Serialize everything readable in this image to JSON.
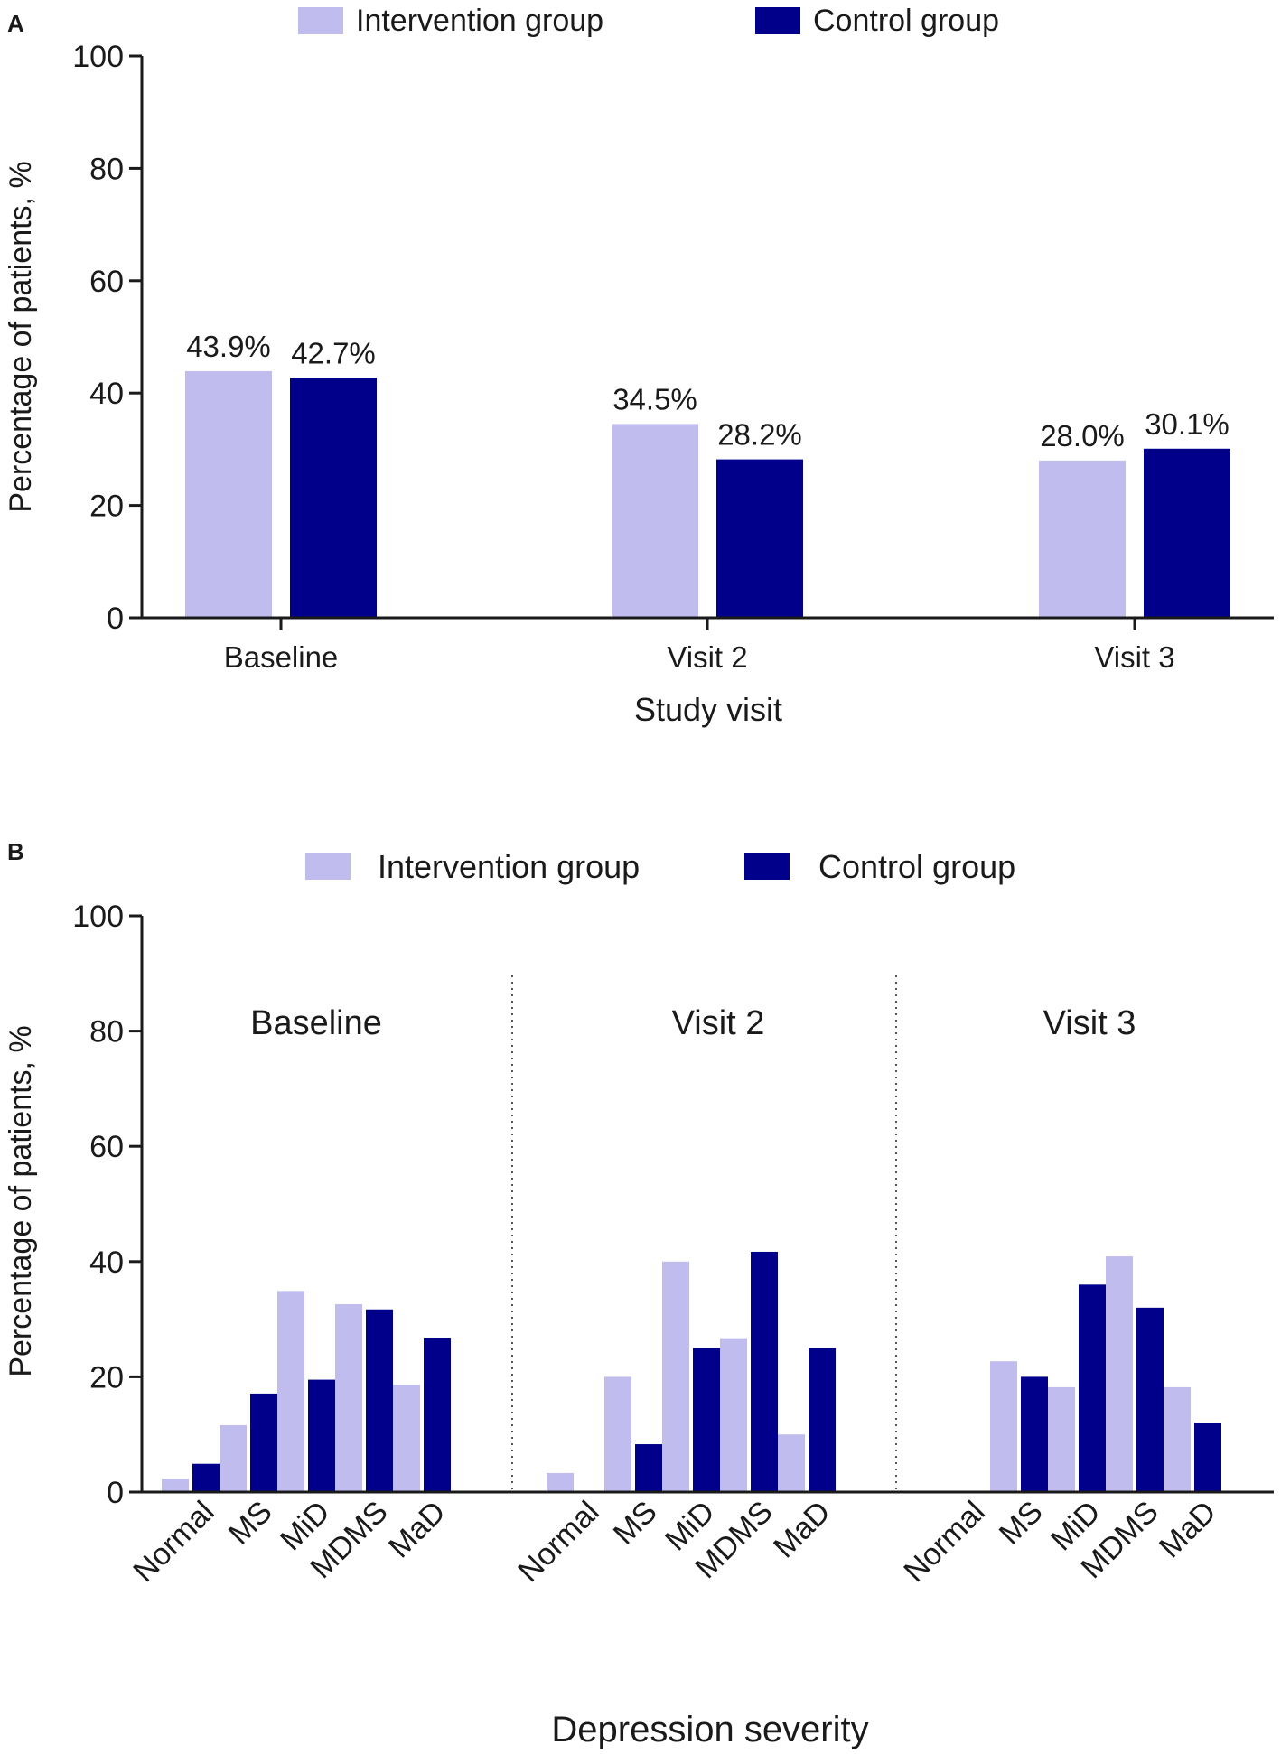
{
  "colors": {
    "intervention": "#c0bdee",
    "control": "#00008b",
    "axis": "#1a1a1a",
    "divider": "#555555"
  },
  "legend": {
    "intervention": "Intervention group",
    "control": "Control group"
  },
  "chart_data": [
    {
      "panel": "A",
      "type": "bar",
      "title": "",
      "xlabel": "Study visit",
      "ylabel": "Percentage of patients, %",
      "ylim": [
        0,
        100
      ],
      "yticks": [
        0,
        20,
        40,
        60,
        80,
        100
      ],
      "categories": [
        "Baseline",
        "Visit 2",
        "Visit 3"
      ],
      "series": [
        {
          "name": "Intervention group",
          "values": [
            43.9,
            34.5,
            28.0
          ],
          "labels": [
            "43.9%",
            "34.5%",
            "28.0%"
          ]
        },
        {
          "name": "Control group",
          "values": [
            42.7,
            28.2,
            30.1
          ],
          "labels": [
            "42.7%",
            "28.2%",
            "30.1%"
          ]
        }
      ],
      "legend_position": "top"
    },
    {
      "panel": "B",
      "type": "bar",
      "title": "",
      "xlabel": "Depression severity",
      "ylabel": "Percentage of patients, %",
      "ylim": [
        0,
        100
      ],
      "yticks": [
        0,
        20,
        40,
        60,
        80,
        100
      ],
      "groups": [
        {
          "label": "Baseline",
          "categories": [
            "Normal",
            "MS",
            "MiD",
            "MDMS",
            "MaD"
          ],
          "intervention": [
            2.3,
            11.6,
            34.9,
            32.6,
            18.6
          ],
          "control": [
            4.9,
            17.1,
            19.5,
            31.7,
            26.8
          ]
        },
        {
          "label": "Visit 2",
          "categories": [
            "Normal",
            "MS",
            "MiD",
            "MDMS",
            "MaD"
          ],
          "intervention": [
            3.3,
            20.0,
            40.0,
            26.7,
            10.0
          ],
          "control": [
            0.0,
            8.3,
            25.0,
            41.7,
            25.0
          ]
        },
        {
          "label": "Visit 3",
          "categories": [
            "Normal",
            "MS",
            "MiD",
            "MDMS",
            "MaD"
          ],
          "intervention": [
            0.0,
            22.7,
            18.2,
            40.9,
            18.2
          ],
          "control": [
            0.0,
            20.0,
            36.0,
            32.0,
            12.0
          ]
        }
      ],
      "series_names": [
        "Intervention group",
        "Control group"
      ],
      "legend_position": "top"
    }
  ]
}
